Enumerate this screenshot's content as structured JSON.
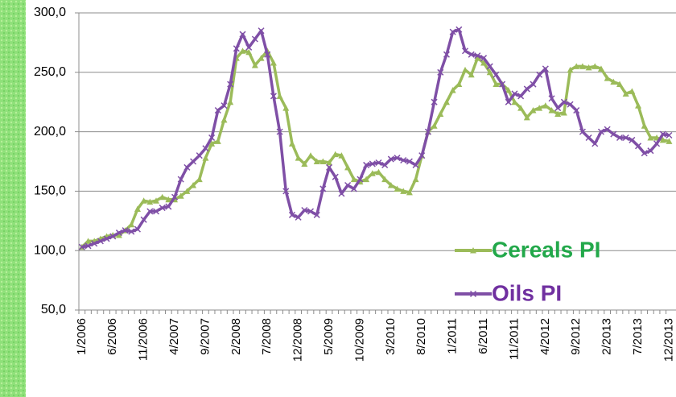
{
  "chart_data": {
    "type": "line",
    "categories": [
      "1/2006",
      null,
      null,
      null,
      null,
      "6/2006",
      null,
      null,
      null,
      null,
      "11/2006",
      null,
      null,
      null,
      null,
      "4/2007",
      null,
      null,
      null,
      null,
      "9/2007",
      null,
      null,
      null,
      null,
      "2/2008",
      null,
      null,
      null,
      null,
      "7/2008",
      null,
      null,
      null,
      null,
      "12/2008",
      null,
      null,
      null,
      null,
      "5/2009",
      null,
      null,
      null,
      null,
      "10/2009",
      null,
      null,
      null,
      null,
      "3/2010",
      null,
      null,
      null,
      null,
      "8/2010",
      null,
      null,
      null,
      null,
      "1/2011",
      null,
      null,
      null,
      null,
      "6/2011",
      null,
      null,
      null,
      null,
      "11/2011",
      null,
      null,
      null,
      null,
      "4/2012",
      null,
      null,
      null,
      null,
      "9/2012",
      null,
      null,
      null,
      null,
      "2/2013",
      null,
      null,
      null,
      null,
      "7/2013",
      null,
      null,
      null,
      null,
      "12/2013"
    ],
    "series": [
      {
        "name": "Cereals PI",
        "color": "#9bbb59",
        "text_color": "#22a84a",
        "marker": "triangle",
        "values": [
          103,
          108,
          108,
          110,
          112,
          113,
          113,
          117,
          122,
          135,
          142,
          141,
          142,
          145,
          143,
          143,
          146,
          150,
          155,
          160,
          178,
          190,
          192,
          210,
          225,
          262,
          268,
          267,
          256,
          262,
          268,
          258,
          230,
          220,
          190,
          178,
          173,
          180,
          175,
          175,
          174,
          181,
          180,
          170,
          160,
          158,
          160,
          165,
          166,
          160,
          155,
          152,
          150,
          149,
          160,
          180,
          200,
          205,
          215,
          225,
          235,
          240,
          252,
          248,
          262,
          258,
          250,
          240,
          240,
          235,
          225,
          220,
          212,
          218,
          220,
          222,
          218,
          215,
          216,
          252,
          255,
          255,
          254,
          255,
          253,
          245,
          242,
          240,
          232,
          234,
          222,
          205,
          195,
          195,
          193,
          192
        ]
      },
      {
        "name": "Oils PI",
        "color": "#7f4fa6",
        "text_color": "#7030a0",
        "marker": "x",
        "values": [
          103,
          104,
          106,
          108,
          110,
          112,
          115,
          117,
          116,
          118,
          126,
          133,
          133,
          136,
          137,
          145,
          160,
          170,
          175,
          180,
          186,
          195,
          218,
          222,
          240,
          270,
          282,
          271,
          278,
          285,
          265,
          230,
          200,
          150,
          130,
          128,
          134,
          133,
          130,
          152,
          170,
          162,
          148,
          155,
          152,
          160,
          172,
          173,
          174,
          172,
          177,
          178,
          176,
          175,
          172,
          180,
          200,
          225,
          250,
          265,
          284,
          286,
          268,
          265,
          264,
          262,
          255,
          248,
          240,
          225,
          232,
          230,
          236,
          240,
          248,
          253,
          228,
          220,
          225,
          223,
          218,
          200,
          195,
          190,
          200,
          202,
          198,
          195,
          195,
          193,
          188,
          182,
          184,
          190,
          198,
          197
        ]
      }
    ],
    "ylim": [
      50,
      300
    ],
    "yticks": [
      {
        "value": 50,
        "label": "50,0"
      },
      {
        "value": 100,
        "label": "100,0"
      },
      {
        "value": 150,
        "label": "150,0"
      },
      {
        "value": 200,
        "label": "200,0"
      },
      {
        "value": 250,
        "label": "250,0"
      },
      {
        "value": 300,
        "label": "300,0"
      }
    ],
    "grid": true,
    "legend": "lower right"
  }
}
